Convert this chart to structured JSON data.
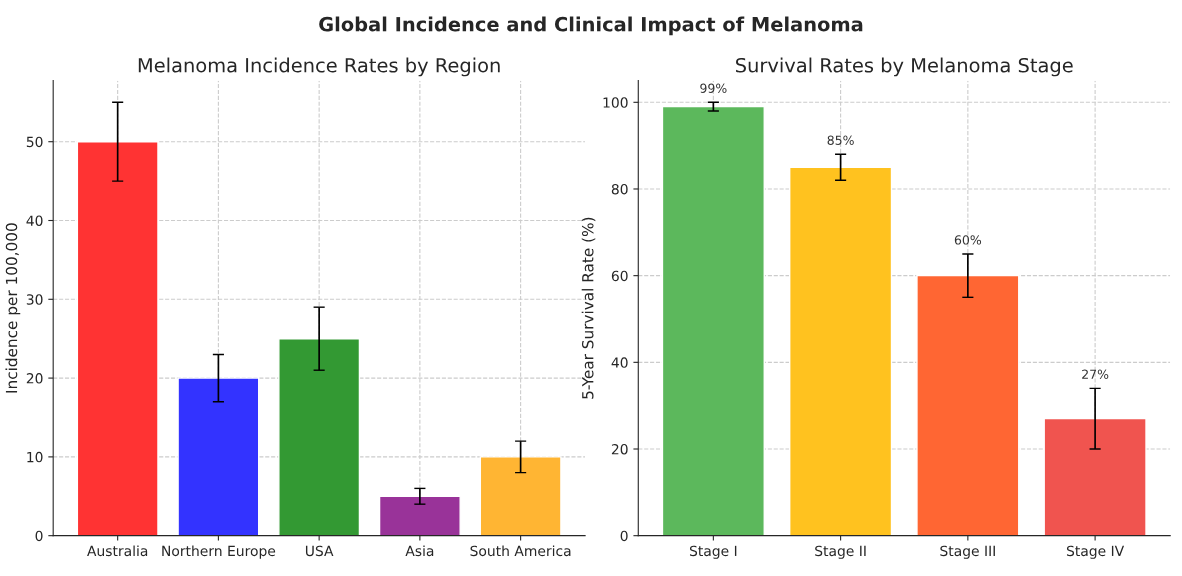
{
  "chart_data": [
    {
      "type": "bar",
      "title": "Melanoma Incidence Rates by Region",
      "ylabel": "Incidence per 100,000",
      "categories": [
        "Australia",
        "Northern Europe",
        "USA",
        "Asia",
        "South America"
      ],
      "values": [
        50,
        20,
        25,
        5,
        10
      ],
      "errors": [
        5,
        3,
        4,
        1,
        2
      ],
      "colors": [
        "#ff3333",
        "#3333ff",
        "#339933",
        "#993399",
        "#ffb533"
      ],
      "ylim": [
        0,
        57.75
      ],
      "yticks": [
        0,
        10,
        20,
        30,
        40,
        50
      ],
      "grid": true,
      "annotations": [
        "Global Incidence and Clinical Impact of Melanoma"
      ]
    },
    {
      "type": "bar",
      "title": "Survival Rates by Melanoma Stage",
      "ylabel": "5-Year Survival Rate (%)",
      "categories": [
        "Stage I",
        "Stage II",
        "Stage III",
        "Stage IV"
      ],
      "values": [
        99,
        85,
        60,
        27
      ],
      "errors": [
        1,
        3,
        5,
        7
      ],
      "colors": [
        "#5cb85c",
        "#ffc21f",
        "#ff6633",
        "#f0544f"
      ],
      "value_labels": [
        "99%",
        "85%",
        "60%",
        "27%"
      ],
      "ylim": [
        0,
        105
      ],
      "yticks": [
        0,
        20,
        40,
        60,
        80,
        100
      ],
      "grid": true
    }
  ]
}
